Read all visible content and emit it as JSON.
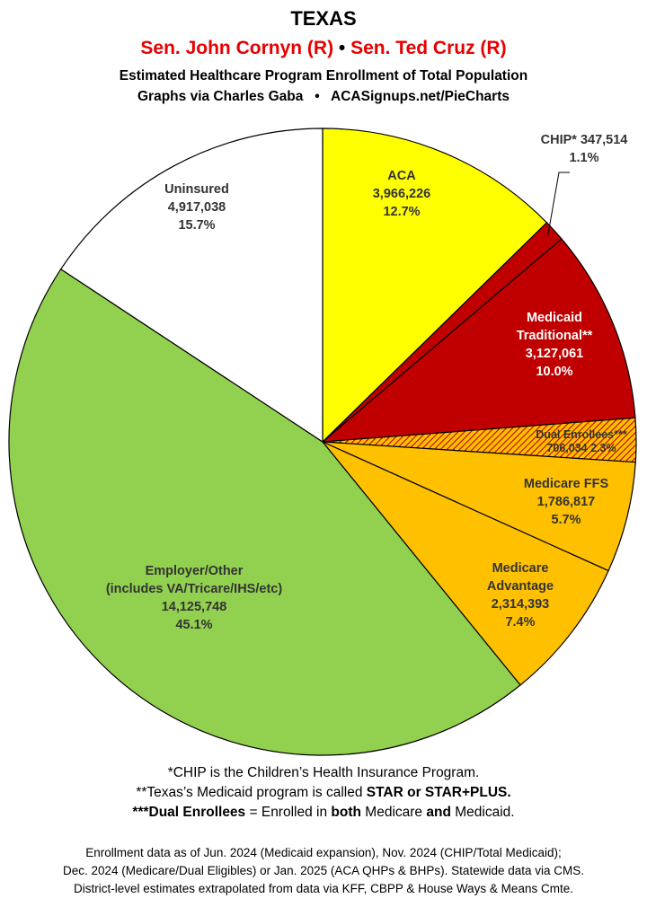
{
  "header": {
    "title": "TEXAS",
    "senator1": "Sen. John Cornyn (R)",
    "bullet": "•",
    "senator2": "Sen. Ted Cruz (R)",
    "subtitle": "Estimated Healthcare Program Enrollment of Total Population",
    "source": "Graphs via Charles Gaba   •   ACASignups.net/PieCharts"
  },
  "chart_data": {
    "type": "pie",
    "start": "12 o'clock",
    "direction": "clockwise",
    "slices": [
      {
        "label": "ACA",
        "value": 3966226,
        "value_label": "3,966,226",
        "pct": "12.7%",
        "color": "#ffff00"
      },
      {
        "label": "CHIP*",
        "value": 347514,
        "value_label": "347,514",
        "pct": "1.1%",
        "color": "#c00000"
      },
      {
        "label": "Medicaid",
        "label2": "Traditional**",
        "value": 3127061,
        "value_label": "3,127,061",
        "pct": "10.0%",
        "color": "#c00000"
      },
      {
        "label": "Dual Enrollees***",
        "value": 706034,
        "value_label": "706,034",
        "pct": "2.3%",
        "color": "#ffc000",
        "pattern": "hatched red/orange"
      },
      {
        "label": "Medicare FFS",
        "value": 1786817,
        "value_label": "1,786,817",
        "pct": "5.7%",
        "color": "#ffc000"
      },
      {
        "label": "Medicare",
        "label2": "Advantage",
        "value": 2314393,
        "value_label": "2,314,393",
        "pct": "7.4%",
        "color": "#ffc000"
      },
      {
        "label": "Employer/Other",
        "label2": "(includes VA/Tricare/IHS/etc)",
        "value": 14125748,
        "value_label": "14,125,748",
        "pct": "45.1%",
        "color": "#92d050"
      },
      {
        "label": "Uninsured",
        "value": 4917038,
        "value_label": "4,917,038",
        "pct": "15.7%",
        "color": "#ffffff"
      }
    ]
  },
  "notes": {
    "n1": "*CHIP is the Children’s Health Insurance Program.",
    "n2a": "**Texas’s Medicaid program is called ",
    "n2b": "STAR or STAR+PLUS.",
    "n3a": "***Dual Enrollees",
    "n3b": " = Enrolled in ",
    "n3c": "both",
    "n3d": " Medicare ",
    "n3e": "and",
    "n3f": " Medicaid."
  },
  "footer": {
    "l1": "Enrollment data as of Jun. 2024 (Medicaid expansion), Nov. 2024 (CHIP/Total Medicaid);",
    "l2": "Dec. 2024 (Medicare/Dual Eligibles) or Jan. 2025 (ACA QHPs & BHPs). Statewide data via CMS.",
    "l3": "District-level estimates extrapolated from data via KFF, CBPP & House Ways & Means Cmte."
  }
}
